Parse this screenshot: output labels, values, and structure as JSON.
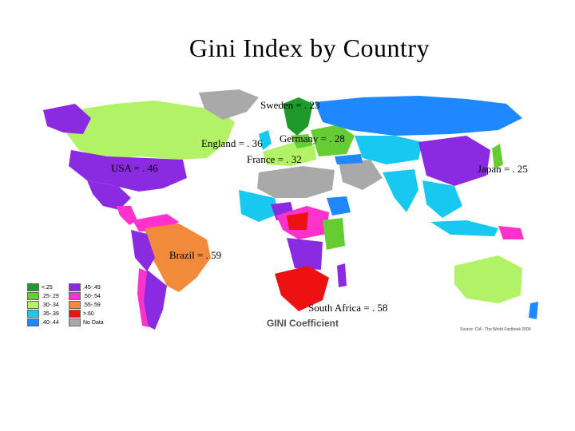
{
  "title": "Gini Index by Country",
  "labels": {
    "sweden": "Sweden = . 23",
    "england": "England = . 36",
    "germany": "Germany = . 28",
    "france": "France = . 32",
    "usa": "USA = . 46",
    "japan": "Japan = . 25",
    "brazil": "Brazil = . 59",
    "south_africa": "South Africa = . 58"
  },
  "legend": {
    "title": "GINI Coefficient",
    "items": [
      {
        "label": "<.25",
        "color": "#1f9a2a"
      },
      {
        "label": ".45-.49",
        "color": "#8a2be2"
      },
      {
        "label": ".25-.29",
        "color": "#66cc33"
      },
      {
        "label": ".50-.54",
        "color": "#ff33cc"
      },
      {
        "label": ".30-.34",
        "color": "#b2f266"
      },
      {
        "label": ".55-.59",
        "color": "#f28a3c"
      },
      {
        "label": ".35-.39",
        "color": "#19c8f0"
      },
      {
        "label": ">.60",
        "color": "#ee1111"
      },
      {
        "label": ".40-.44",
        "color": "#1e88ff"
      },
      {
        "label": "No Data",
        "color": "#a9a9a9"
      }
    ]
  },
  "source": "Source: CIA - The World Factbook 2009",
  "colors": {
    "lt25": "#1f9a2a",
    "g25_29": "#66cc33",
    "g30_34": "#b2f266",
    "g35_39": "#19c8f0",
    "g40_44": "#1e88ff",
    "g45_49": "#8a2be2",
    "g50_54": "#ff33cc",
    "g55_59": "#f28a3c",
    "gt60": "#ee1111",
    "nodata": "#a9a9a9"
  }
}
